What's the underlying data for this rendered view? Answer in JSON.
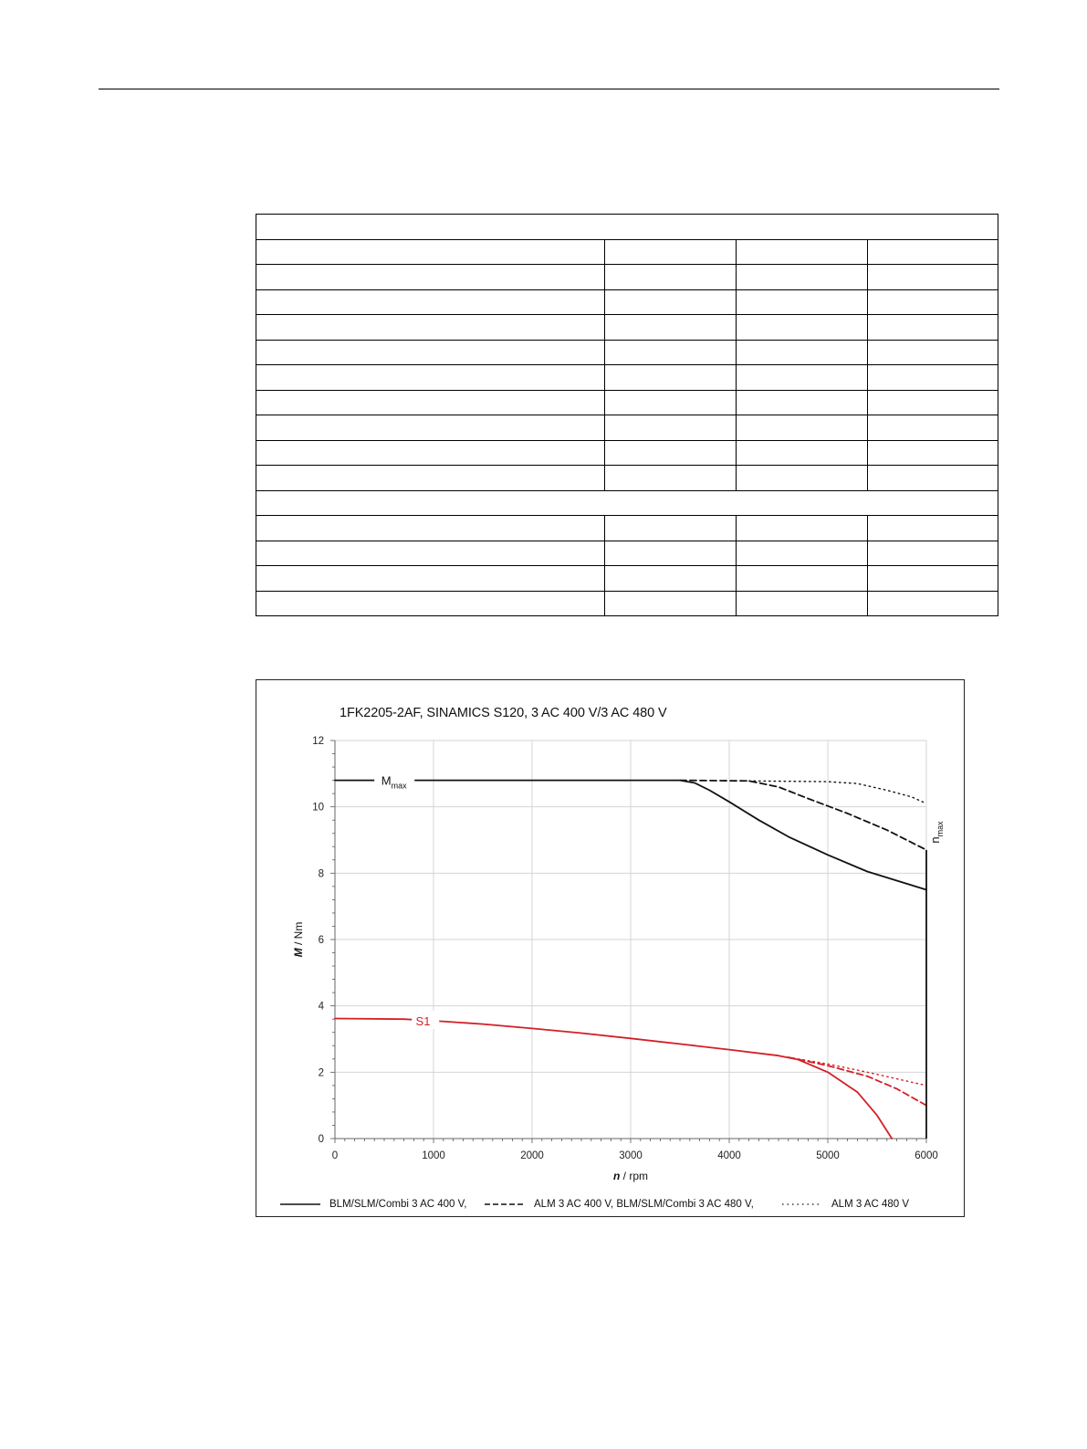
{
  "page": {
    "table": {
      "rows": [
        {
          "type": "header"
        },
        {
          "type": "row"
        },
        {
          "type": "row"
        },
        {
          "type": "row"
        },
        {
          "type": "row"
        },
        {
          "type": "row"
        },
        {
          "type": "row"
        },
        {
          "type": "row"
        },
        {
          "type": "row"
        },
        {
          "type": "row"
        },
        {
          "type": "row"
        },
        {
          "type": "header"
        },
        {
          "type": "row"
        },
        {
          "type": "row"
        },
        {
          "type": "row"
        },
        {
          "type": "row"
        }
      ]
    }
  },
  "chart_data": {
    "type": "line",
    "title": "1FK2205-2AF,  SINAMICS S120,  3 AC 400 V/3 AC 480 V",
    "xlabel_var": "n",
    "xlabel_unit": " / rpm",
    "ylabel_var": "M",
    "ylabel_unit": " / Nm",
    "xlim": [
      0,
      6000
    ],
    "ylim": [
      0,
      12
    ],
    "xticks": [
      0,
      1000,
      2000,
      3000,
      4000,
      5000,
      6000
    ],
    "yticks": [
      0,
      2,
      4,
      6,
      8,
      10,
      12
    ],
    "grid": true,
    "legend_position": "bottom",
    "labels": {
      "mmax_main": "M",
      "mmax_sub": "max",
      "nmax_main": "n",
      "nmax_sub": "max",
      "s1": "S1"
    },
    "legend": [
      {
        "label": "BLM/SLM/Combi 3 AC 400 V,",
        "style": "solid"
      },
      {
        "label": "ALM 3 AC 400 V, BLM/SLM/Combi 3 AC 480 V,",
        "style": "dashed"
      },
      {
        "label": "ALM 3 AC 480 V",
        "style": "dotted"
      }
    ],
    "colors": {
      "mmax": "#111111",
      "s1": "#d41f26",
      "grid": "#d4d4d4"
    },
    "series": [
      {
        "group": "Mmax",
        "style": "solid",
        "color": "#111111",
        "points": [
          [
            0,
            10.8
          ],
          [
            3500,
            10.8
          ],
          [
            3650,
            10.72
          ],
          [
            3800,
            10.5
          ],
          [
            4000,
            10.15
          ],
          [
            4300,
            9.6
          ],
          [
            4600,
            9.1
          ],
          [
            5000,
            8.55
          ],
          [
            5400,
            8.05
          ],
          [
            6000,
            7.5
          ]
        ]
      },
      {
        "group": "Mmax",
        "style": "dashed",
        "color": "#111111",
        "points": [
          [
            3500,
            10.8
          ],
          [
            4200,
            10.78
          ],
          [
            4500,
            10.6
          ],
          [
            4800,
            10.25
          ],
          [
            5200,
            9.8
          ],
          [
            5600,
            9.3
          ],
          [
            6000,
            8.7
          ]
        ]
      },
      {
        "group": "Mmax",
        "style": "dotted",
        "color": "#111111",
        "points": [
          [
            4200,
            10.78
          ],
          [
            5000,
            10.76
          ],
          [
            5300,
            10.7
          ],
          [
            5600,
            10.5
          ],
          [
            5850,
            10.3
          ],
          [
            6000,
            10.1
          ]
        ]
      },
      {
        "group": "S1",
        "style": "solid",
        "color": "#d41f26",
        "points": [
          [
            0,
            3.62
          ],
          [
            700,
            3.6
          ],
          [
            1000,
            3.55
          ],
          [
            1500,
            3.45
          ],
          [
            2000,
            3.32
          ],
          [
            2500,
            3.18
          ],
          [
            3000,
            3.02
          ],
          [
            3500,
            2.85
          ],
          [
            4000,
            2.68
          ],
          [
            4500,
            2.5
          ],
          [
            4700,
            2.38
          ],
          [
            5000,
            2.0
          ],
          [
            5300,
            1.4
          ],
          [
            5500,
            0.7
          ],
          [
            5650,
            0
          ]
        ]
      },
      {
        "group": "S1",
        "style": "dashed",
        "color": "#d41f26",
        "points": [
          [
            4600,
            2.45
          ],
          [
            5000,
            2.2
          ],
          [
            5400,
            1.88
          ],
          [
            5700,
            1.5
          ],
          [
            6000,
            1.0
          ]
        ]
      },
      {
        "group": "S1",
        "style": "dotted",
        "color": "#d41f26",
        "points": [
          [
            4600,
            2.45
          ],
          [
            5000,
            2.25
          ],
          [
            5400,
            2.0
          ],
          [
            5700,
            1.8
          ],
          [
            6000,
            1.6
          ]
        ]
      }
    ],
    "nmax_line": {
      "x": 6000,
      "y_top": 8.7
    }
  }
}
